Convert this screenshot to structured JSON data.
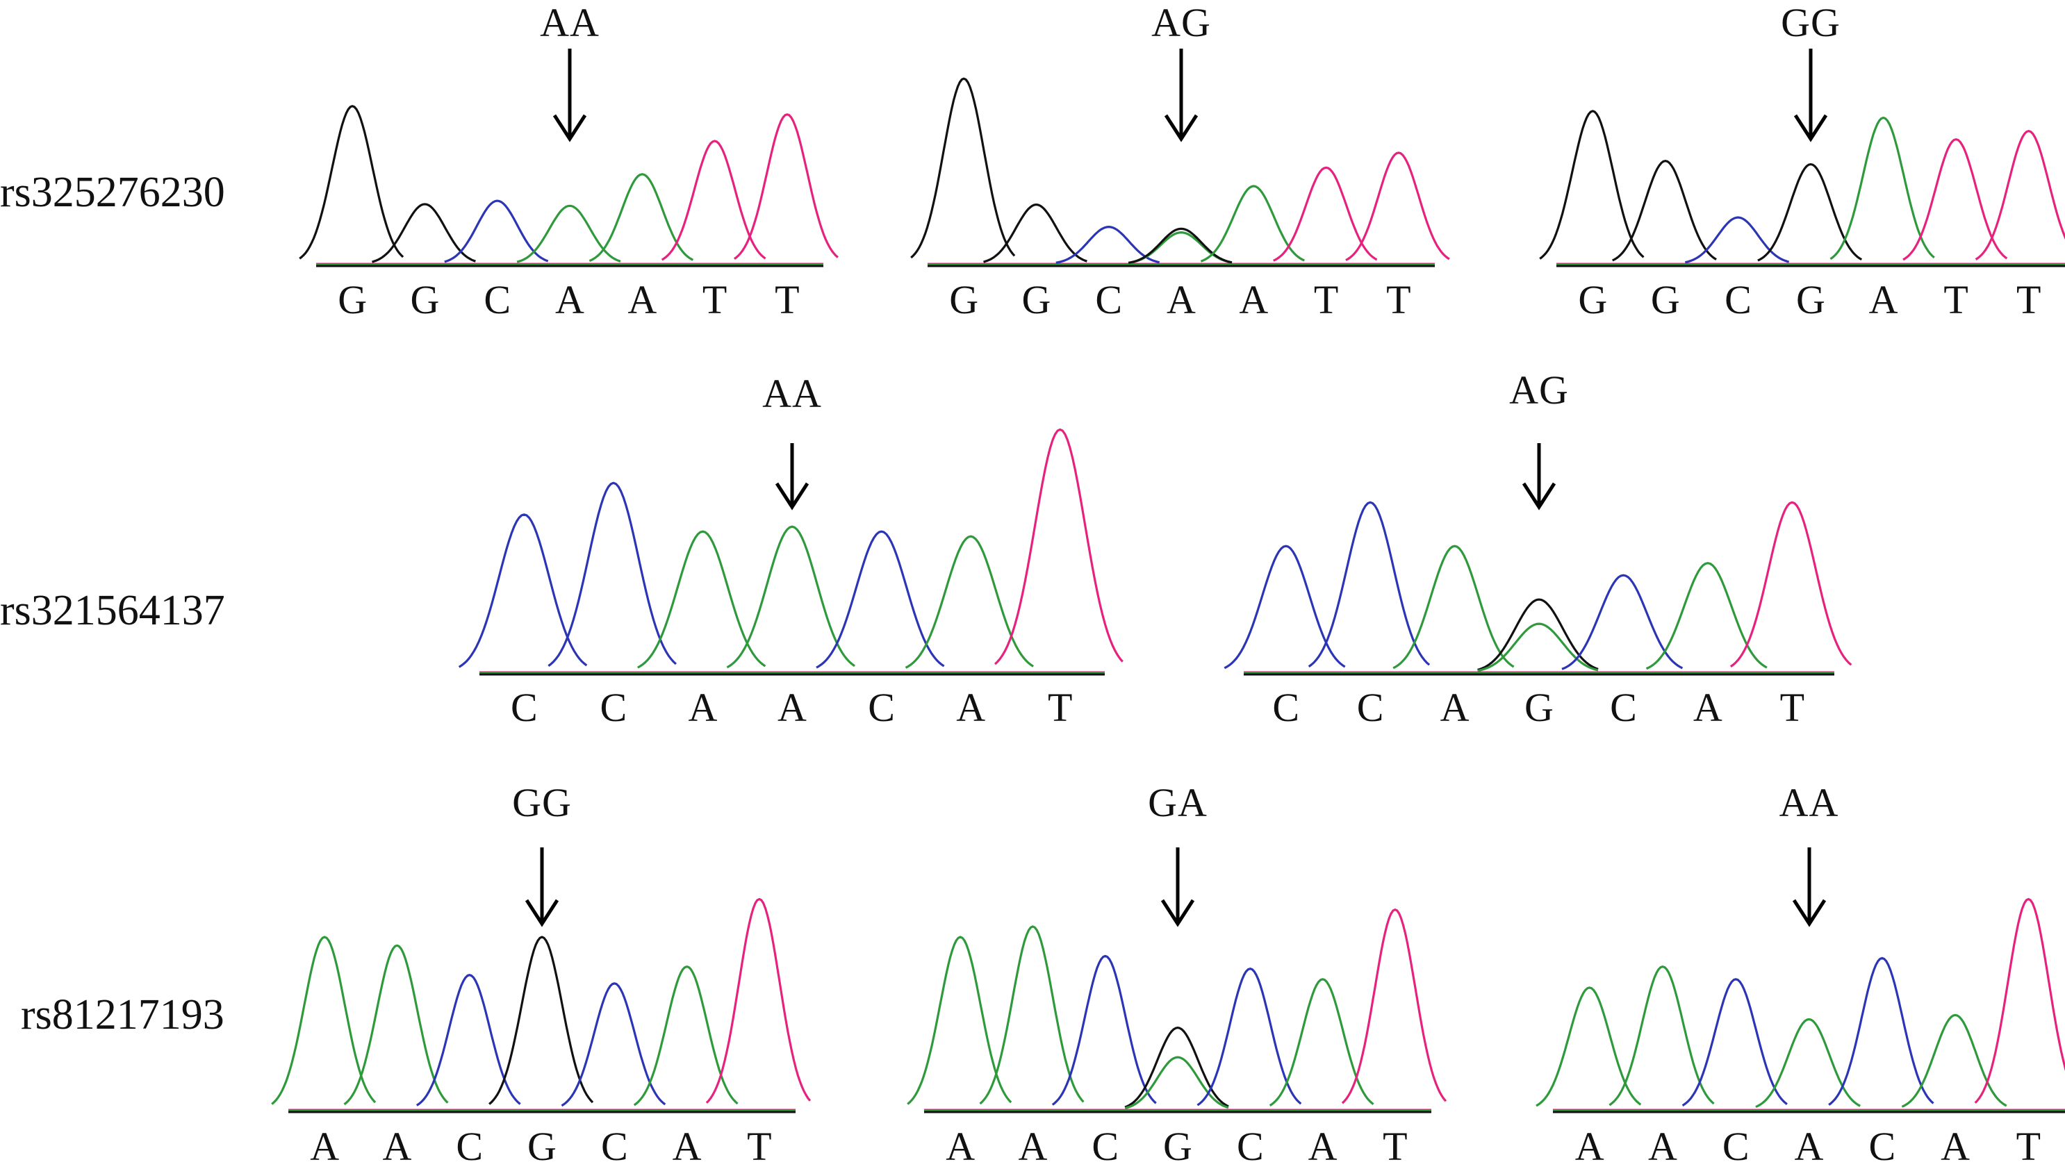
{
  "colors": {
    "A": "#2e9a3c",
    "C": "#2b35b5",
    "G": "#111111",
    "T": "#e6227e"
  },
  "rows": [
    {
      "snp_id": "rs325276230",
      "panels": [
        {
          "genotype": "AA",
          "bases": [
            "G",
            "G",
            "C",
            "A",
            "A",
            "T",
            "T"
          ],
          "peaks": [
            {
              "base": "G",
              "height": 0.95
            },
            {
              "base": "G",
              "height": 0.36
            },
            {
              "base": "C",
              "height": 0.38
            },
            {
              "base": "A",
              "height": 0.35
            },
            {
              "base": "A",
              "height": 0.54
            },
            {
              "base": "T",
              "height": 0.74
            },
            {
              "base": "T",
              "height": 0.9
            }
          ]
        },
        {
          "genotype": "AG",
          "bases": [
            "G",
            "G",
            "C",
            "A",
            "A",
            "T",
            "T"
          ],
          "peaks": [
            {
              "base": "G",
              "height": 1.0
            },
            {
              "base": "G",
              "height": 0.32
            },
            {
              "base": "C",
              "height": 0.2
            },
            {
              "base": "A",
              "height": 0.17
            },
            {
              "base": "G",
              "height": 0.19
            },
            {
              "base": "A",
              "height": 0.42
            },
            {
              "base": "T",
              "height": 0.52
            },
            {
              "base": "T",
              "height": 0.6
            }
          ]
        },
        {
          "genotype": "GG",
          "bases": [
            "G",
            "G",
            "C",
            "G",
            "A",
            "T",
            "T"
          ],
          "peaks": [
            {
              "base": "G",
              "height": 0.92
            },
            {
              "base": "G",
              "height": 0.62
            },
            {
              "base": "C",
              "height": 0.28
            },
            {
              "base": "G",
              "height": 0.6
            },
            {
              "base": "A",
              "height": 0.88
            },
            {
              "base": "T",
              "height": 0.75
            },
            {
              "base": "T",
              "height": 0.8
            }
          ]
        }
      ]
    },
    {
      "snp_id": "rs321564137",
      "panels": [
        {
          "genotype": "AA",
          "bases": [
            "C",
            "C",
            "A",
            "A",
            "C",
            "A",
            "T"
          ],
          "peaks": [
            {
              "base": "C",
              "height": 0.65
            },
            {
              "base": "C",
              "height": 0.78
            },
            {
              "base": "A",
              "height": 0.58
            },
            {
              "base": "A",
              "height": 0.6
            },
            {
              "base": "C",
              "height": 0.58
            },
            {
              "base": "A",
              "height": 0.56
            },
            {
              "base": "T",
              "height": 1.0
            }
          ]
        },
        {
          "genotype": "AG",
          "bases": [
            "C",
            "C",
            "A",
            "G",
            "C",
            "A",
            "T"
          ],
          "peaks": [
            {
              "base": "C",
              "height": 0.52
            },
            {
              "base": "C",
              "height": 0.7
            },
            {
              "base": "A",
              "height": 0.52
            },
            {
              "base": "G",
              "height": 0.3
            },
            {
              "base": "A",
              "height": 0.2
            },
            {
              "base": "C",
              "height": 0.4
            },
            {
              "base": "A",
              "height": 0.45
            },
            {
              "base": "T",
              "height": 0.7
            }
          ]
        }
      ]
    },
    {
      "snp_id": "rs81217193",
      "panels": [
        {
          "genotype": "GG",
          "bases": [
            "A",
            "A",
            "C",
            "G",
            "C",
            "A",
            "T"
          ],
          "peaks": [
            {
              "base": "A",
              "height": 0.82
            },
            {
              "base": "A",
              "height": 0.78
            },
            {
              "base": "C",
              "height": 0.64
            },
            {
              "base": "G",
              "height": 0.82
            },
            {
              "base": "C",
              "height": 0.6
            },
            {
              "base": "A",
              "height": 0.68
            },
            {
              "base": "T",
              "height": 1.0
            }
          ]
        },
        {
          "genotype": "GA",
          "bases": [
            "A",
            "A",
            "C",
            "G",
            "C",
            "A",
            "T"
          ],
          "peaks": [
            {
              "base": "A",
              "height": 0.82
            },
            {
              "base": "A",
              "height": 0.87
            },
            {
              "base": "C",
              "height": 0.73
            },
            {
              "base": "G",
              "height": 0.39
            },
            {
              "base": "A",
              "height": 0.25
            },
            {
              "base": "C",
              "height": 0.67
            },
            {
              "base": "A",
              "height": 0.62
            },
            {
              "base": "T",
              "height": 0.95
            }
          ]
        },
        {
          "genotype": "AA",
          "bases": [
            "A",
            "A",
            "C",
            "A",
            "C",
            "A",
            "T"
          ],
          "peaks": [
            {
              "base": "A",
              "height": 0.58
            },
            {
              "base": "A",
              "height": 0.68
            },
            {
              "base": "C",
              "height": 0.62
            },
            {
              "base": "A",
              "height": 0.43
            },
            {
              "base": "C",
              "height": 0.72
            },
            {
              "base": "A",
              "height": 0.45
            },
            {
              "base": "T",
              "height": 1.0
            }
          ]
        }
      ]
    }
  ]
}
